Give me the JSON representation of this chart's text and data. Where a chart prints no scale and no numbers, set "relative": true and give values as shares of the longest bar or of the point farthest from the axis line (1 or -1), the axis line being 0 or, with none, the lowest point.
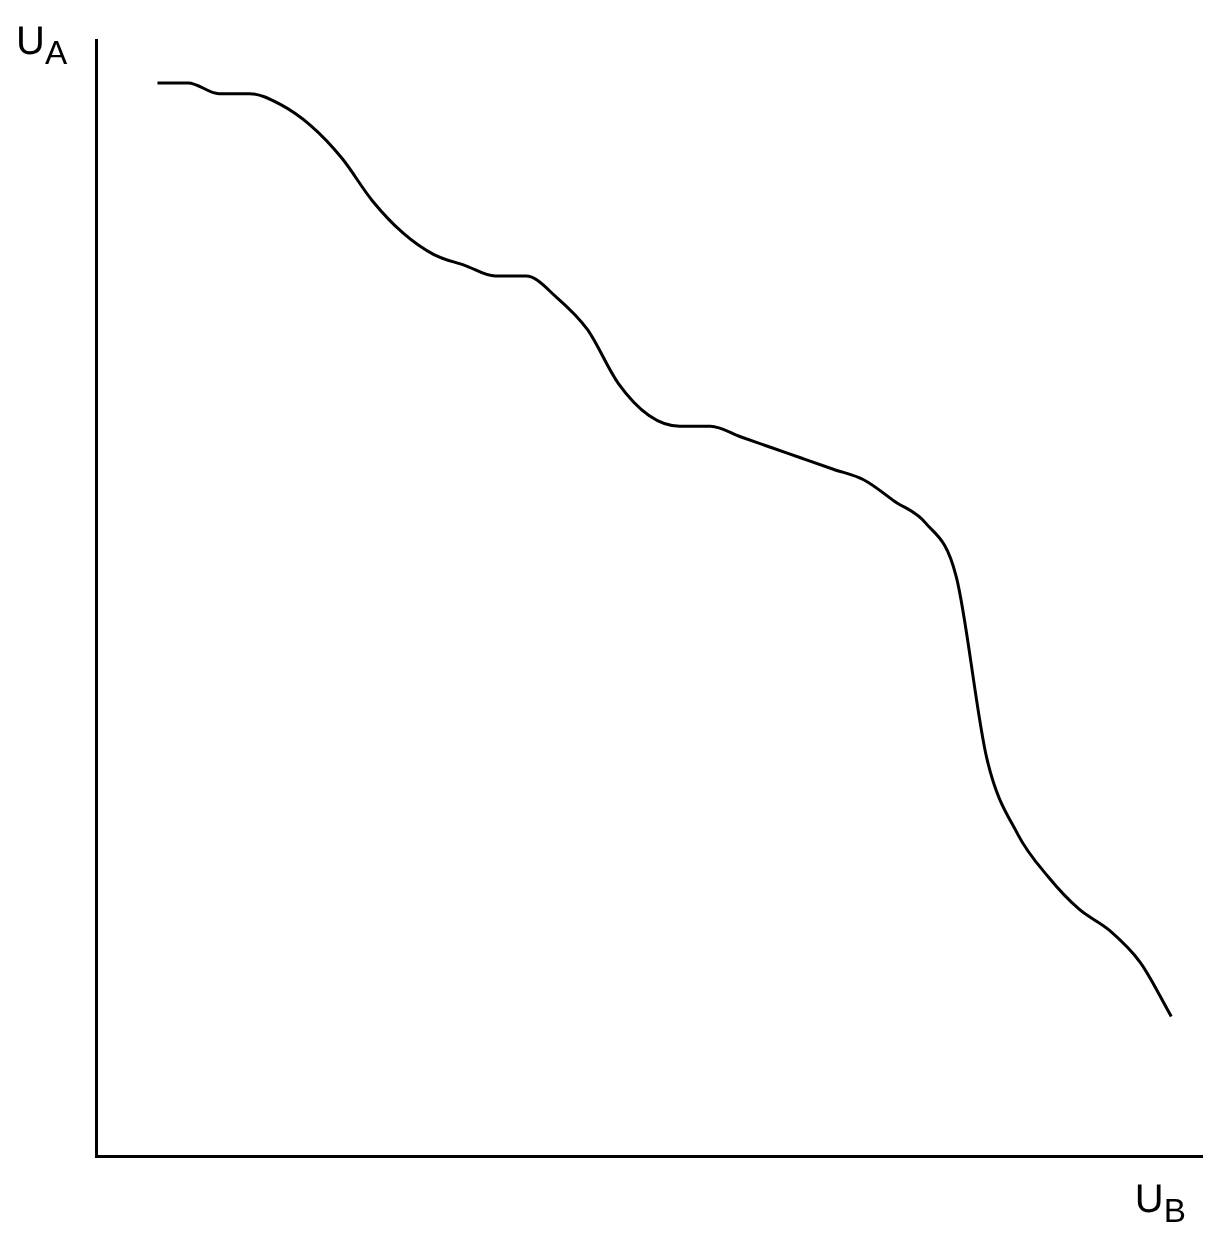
{
  "chart_data": {
    "type": "line",
    "xlabel": "U$_{B}$",
    "ylabel": "U$_{A}$",
    "relative": true,
    "grid": false,
    "legend": false,
    "marker": "none",
    "line_style": "solid",
    "categories": [
      null,
      null,
      null,
      null,
      null,
      null,
      null,
      null,
      null,
      null,
      null,
      null,
      null,
      null,
      null,
      null,
      null,
      null,
      null,
      null,
      null,
      null,
      null,
      null,
      null,
      null,
      null,
      null,
      null,
      null,
      null,
      null,
      null,
      null,
      null,
      null,
      null
    ],
    "series": [
      {
        "color": "#000000",
        "values": [
          null,
          null,
          1.0,
          1.0,
          0.99,
          0.99,
          0.98,
          0.96,
          0.93,
          0.89,
          0.86,
          0.84,
          0.83,
          0.82,
          0.82,
          0.8,
          0.77,
          0.72,
          0.69,
          0.68,
          0.68,
          0.67,
          0.66,
          0.65,
          0.64,
          0.63,
          0.61,
          0.59,
          0.54,
          0.37,
          0.3,
          0.26,
          0.23,
          0.21,
          0.18,
          0.13,
          null
        ]
      }
    ]
  }
}
